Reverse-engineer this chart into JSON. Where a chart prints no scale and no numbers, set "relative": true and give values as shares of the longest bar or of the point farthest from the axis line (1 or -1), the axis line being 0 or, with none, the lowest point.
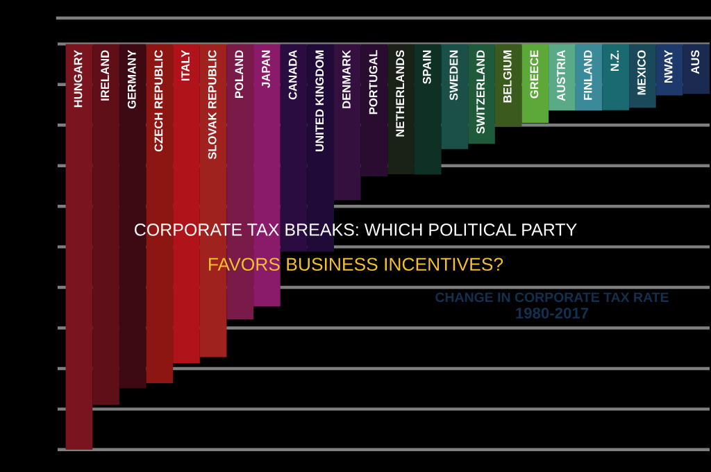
{
  "chart_data": {
    "type": "bar",
    "title": "CORPORATE TAX BREAKS: WHICH POLITICAL PARTY",
    "subtitle": "FAVORS BUSINESS INCENTIVES?",
    "annotations": [
      "CHANGE IN CORPORATE TAX RATE",
      "1980-2017"
    ],
    "relative": true,
    "grid": "y",
    "categories": [
      "HUNGARY",
      "IRELAND",
      "GERMANY",
      "CZECH REPUBLIC",
      "ITALY",
      "SLOVAK REPUBLIC",
      "POLAND",
      "JAPAN",
      "CANADA",
      "UNITED KINGDOM",
      "DENMARK",
      "PORTUGAL",
      "NETHERLANDS",
      "SPAIN",
      "SWEDEN",
      "SWITZERLAND",
      "BELGIUM",
      "GREECE",
      "AUSTRIA",
      "FINLAND",
      "N.Z.",
      "MEXICO",
      "NWAY",
      "AUS"
    ],
    "values": [
      -1,
      -0.889,
      -0.849,
      -0.836,
      -0.787,
      -0.772,
      -0.679,
      -0.647,
      -0.512,
      -0.512,
      -0.385,
      -0.326,
      -0.321,
      -0.322,
      -0.259,
      -0.246,
      -0.203,
      -0.195,
      -0.164,
      -0.164,
      -0.163,
      -0.157,
      -0.127,
      -0.123
    ],
    "colors": [
      "#7a1520",
      "#5e0f18",
      "#3d0a14",
      "#8e1612",
      "#b0141a",
      "#a0221e",
      "#7a1a48",
      "#8a1a6a",
      "#2a0c40",
      "#200a38",
      "#34103f",
      "#2a0c30",
      "#1a2218",
      "#0f3024",
      "#1a5048",
      "#1f5a3a",
      "#3a5a1e",
      "#5ca838",
      "#5aaa88",
      "#3a8a9a",
      "#1a6a72",
      "#1a4a5a",
      "#1e3a6a",
      "#1a2a50"
    ]
  }
}
